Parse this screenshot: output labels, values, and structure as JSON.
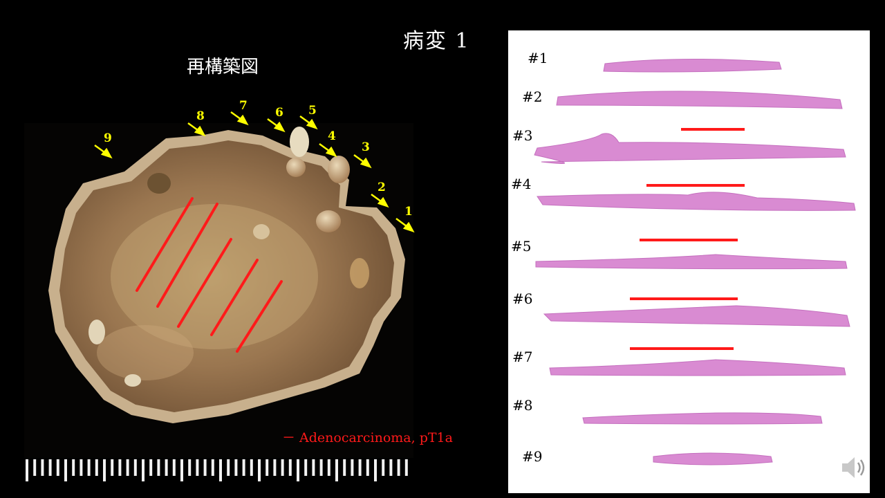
{
  "slide": {
    "title": "病変 1",
    "subtitle": "再構築図"
  },
  "specimen": {
    "arrow_labels": [
      "1",
      "2",
      "3",
      "4",
      "5",
      "6",
      "7",
      "8",
      "9"
    ],
    "arrow_color": "#ffff00",
    "tumor_line_color": "#ff1a1a",
    "legend": "－ Adenocarcinoma, pT1a"
  },
  "sections": {
    "labels": [
      "#1",
      "#2",
      "#3",
      "#4",
      "#5",
      "#6",
      "#7",
      "#8",
      "#9"
    ],
    "tissue_color": "#d98bd2",
    "tumor_bar_color": "#ff1a1a"
  },
  "icons": {
    "speaker": "speaker-icon"
  }
}
